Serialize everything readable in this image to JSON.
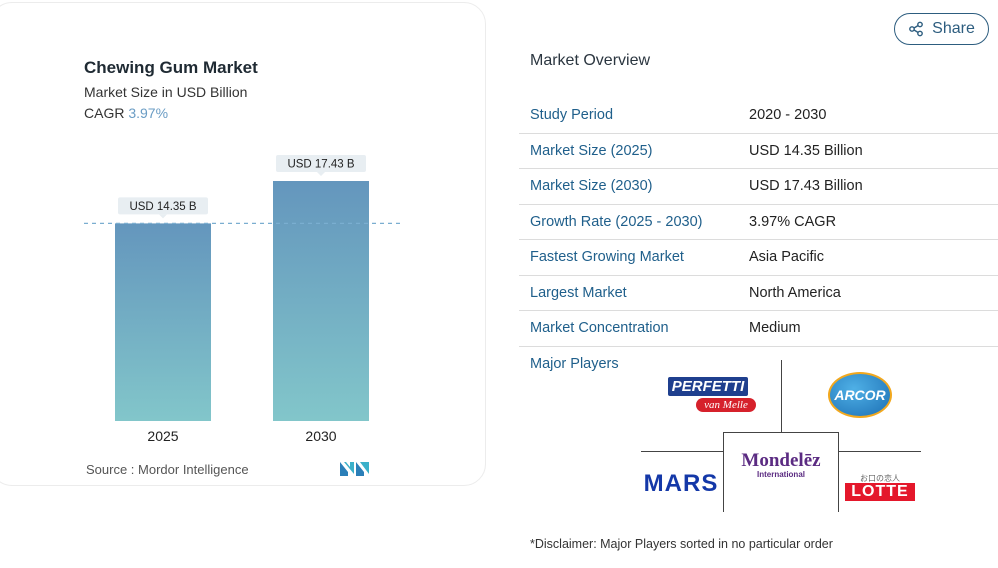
{
  "chart": {
    "title": "Chewing Gum Market",
    "subtitle": "Market Size in USD Billion",
    "cagr_label": "CAGR",
    "cagr_value": "3.97%",
    "source": "Source :  Mordor Intelligence"
  },
  "chart_data": {
    "type": "bar",
    "title": "Chewing Gum Market",
    "subtitle": "Market Size in USD Billion",
    "categories": [
      "2025",
      "2030"
    ],
    "values": [
      14.35,
      17.43
    ],
    "data_labels": [
      "USD 14.35 B",
      "USD 17.43 B"
    ],
    "ylim": [
      0,
      20
    ],
    "grid": false,
    "colors": [
      "#6b9fc1",
      "#7fc3c8"
    ]
  },
  "share": {
    "label": "Share"
  },
  "overview": {
    "title": "Market Overview",
    "rows": [
      {
        "key": "Study Period",
        "value": "2020 - 2030"
      },
      {
        "key": "Market Size (2025)",
        "value": "USD 14.35 Billion"
      },
      {
        "key": "Market Size (2030)",
        "value": "USD 17.43 Billion"
      },
      {
        "key": "Growth Rate (2025 - 2030)",
        "value": "3.97% CAGR"
      },
      {
        "key": "Fastest Growing Market",
        "value": "Asia Pacific"
      },
      {
        "key": "Largest Market",
        "value": "North America"
      },
      {
        "key": "Market Concentration",
        "value": "Medium"
      }
    ]
  },
  "players": {
    "label": "Major Players",
    "perfetti_top": "PERFETTI",
    "perfetti_bottom": "van Melle",
    "arcor": "ARCOR",
    "mondelez": "Mondelēz",
    "mondelez_sub": "International",
    "mars": "MARS",
    "lotte": "LOTTE",
    "lotte_small": "お口の恋人"
  },
  "disclaimer": "*Disclaimer: Major Players sorted in no particular order"
}
